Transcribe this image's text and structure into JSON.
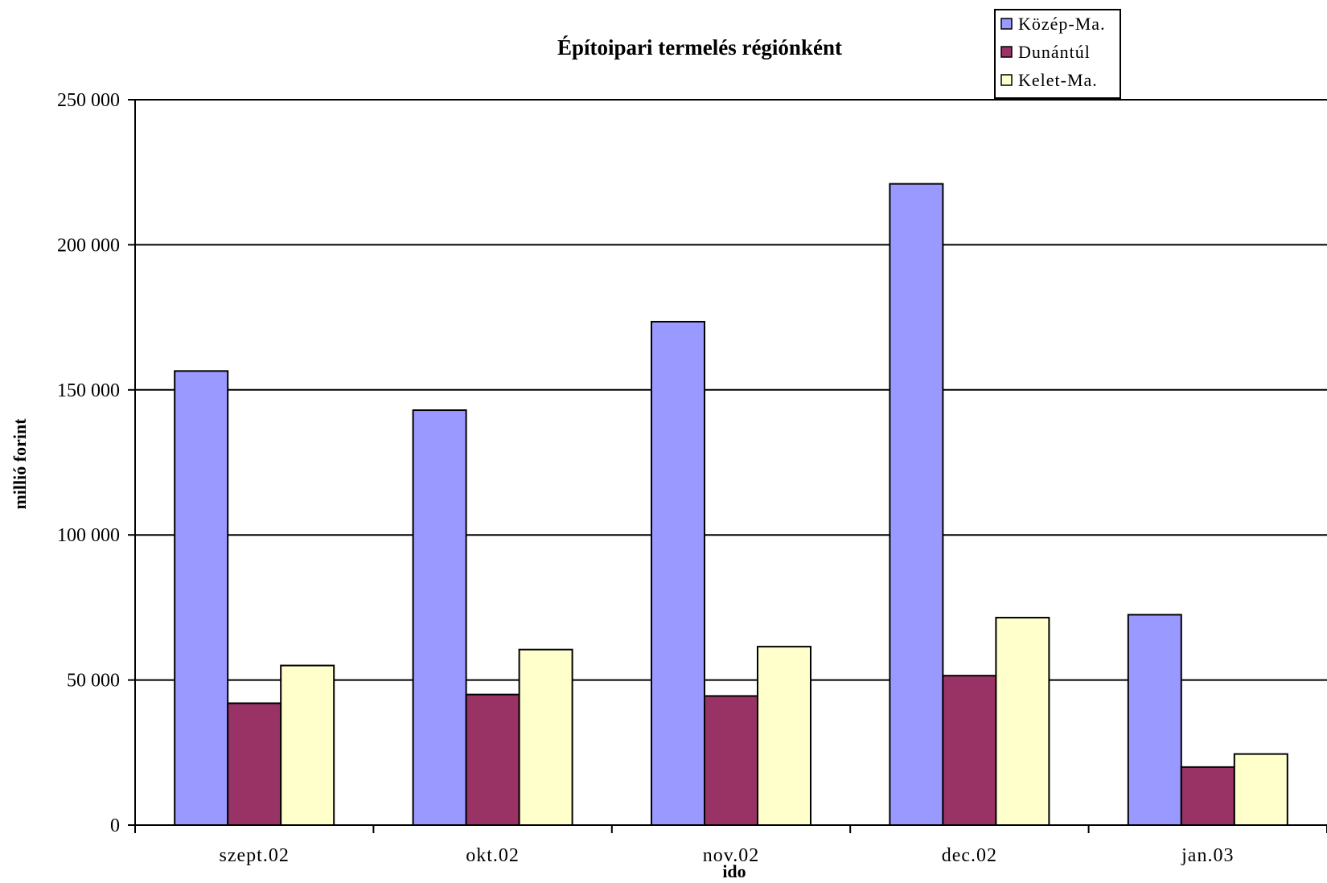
{
  "chart_data": {
    "type": "bar",
    "title": "Építoipari termelés régiónként",
    "xlabel": "ido",
    "ylabel": "millió forint",
    "categories": [
      "szept.02",
      "okt.02",
      "nov.02",
      "dec.02",
      "jan.03"
    ],
    "series": [
      {
        "name": "Közép-Ma.",
        "color": "#9999ff",
        "values": [
          156500,
          143000,
          173500,
          221000,
          72500
        ]
      },
      {
        "name": "Dunántúl",
        "color": "#993366",
        "values": [
          42000,
          45000,
          44500,
          51500,
          20000
        ]
      },
      {
        "name": "Kelet-Ma.",
        "color": "#ffffcc",
        "values": [
          55000,
          60500,
          61500,
          71500,
          24500
        ]
      }
    ],
    "ylim": [
      0,
      250000
    ],
    "yticks": [
      0,
      50000,
      100000,
      150000,
      200000,
      250000
    ],
    "ytick_labels": [
      "0",
      "50 000",
      "100 000",
      "150 000",
      "200 000",
      "250 000"
    ],
    "grid": true,
    "legend_position": "top-right"
  }
}
